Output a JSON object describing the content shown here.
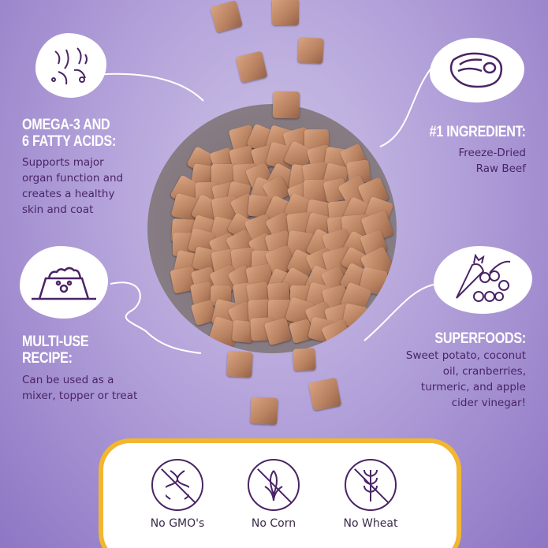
{
  "colors": {
    "heading": "#ffffff",
    "body_text": "#4a2466",
    "panel_border": "#f2b630",
    "background": "#b3a2da"
  },
  "features": [
    {
      "icon": "fatty-acids-icon",
      "title_l1": "OMEGA-3 AND",
      "title_l2": "6 FATTY ACIDS:",
      "text_l1": "Supports major",
      "text_l2": "organ function and",
      "text_l3": "creates a healthy",
      "text_l4": "skin and coat"
    },
    {
      "icon": "steak-icon",
      "title_l1": "#1 INGREDIENT:",
      "text_l1": "Freeze-Dried",
      "text_l2": "Raw Beef"
    },
    {
      "icon": "food-bowl-icon",
      "title_l1": "MULTI-USE",
      "title_l2": "RECIPE:",
      "text_l1": "Can be used as a",
      "text_l2": "mixer, topper or treat"
    },
    {
      "icon": "carrot-berries-icon",
      "title_l1": "SUPERFOODS:",
      "text_l1": "Sweet potato, coconut",
      "text_l2": "oil, cranberries,",
      "text_l3": "turmeric, and apple",
      "text_l4": "cider vinegar!"
    }
  ],
  "badges": [
    {
      "icon": "no-gmo-icon",
      "label": "No GMO's"
    },
    {
      "icon": "no-corn-icon",
      "label": "No Corn"
    },
    {
      "icon": "no-wheat-icon",
      "label": "No Wheat"
    }
  ]
}
